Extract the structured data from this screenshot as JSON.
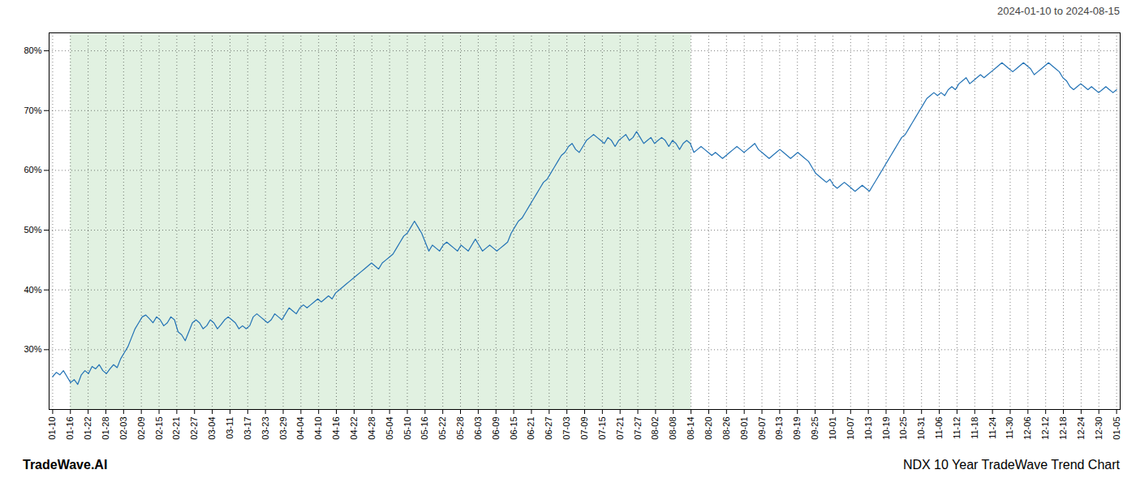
{
  "chart_data": {
    "type": "line",
    "title": "NDX 10 Year TradeWave Trend Chart",
    "subtitle": "2024-01-10 to 2024-08-15",
    "annotations": [
      "TradeWave.AI"
    ],
    "color": "#2272B5",
    "grid": true,
    "shaded_region": {
      "x": [
        4.95,
        178.2
      ],
      "color": "#C8E6C9"
    },
    "xlim": [
      -1,
      298
    ],
    "xticks": [
      {
        "value": 0,
        "label": "01-10"
      },
      {
        "value": 4.95,
        "label": "01-16"
      },
      {
        "value": 9.9,
        "label": "01-22"
      },
      {
        "value": 14.85,
        "label": "01-28"
      },
      {
        "value": 19.8,
        "label": "02-03"
      },
      {
        "value": 24.75,
        "label": "02-09"
      },
      {
        "value": 29.7,
        "label": "02-15"
      },
      {
        "value": 34.65,
        "label": "02-21"
      },
      {
        "value": 39.6,
        "label": "02-27"
      },
      {
        "value": 44.55,
        "label": "03-04"
      },
      {
        "value": 49.5,
        "label": "03-11"
      },
      {
        "value": 54.45,
        "label": "03-17"
      },
      {
        "value": 59.4,
        "label": "03-23"
      },
      {
        "value": 64.35,
        "label": "03-29"
      },
      {
        "value": 69.3,
        "label": "04-04"
      },
      {
        "value": 74.25,
        "label": "04-10"
      },
      {
        "value": 79.2,
        "label": "04-16"
      },
      {
        "value": 84.15,
        "label": "04-22"
      },
      {
        "value": 89.1,
        "label": "04-28"
      },
      {
        "value": 94.05,
        "label": "05-04"
      },
      {
        "value": 99,
        "label": "05-10"
      },
      {
        "value": 103.95,
        "label": "05-16"
      },
      {
        "value": 108.9,
        "label": "05-22"
      },
      {
        "value": 113.85,
        "label": "05-28"
      },
      {
        "value": 118.8,
        "label": "06-03"
      },
      {
        "value": 123.75,
        "label": "06-09"
      },
      {
        "value": 128.7,
        "label": "06-15"
      },
      {
        "value": 133.65,
        "label": "06-21"
      },
      {
        "value": 138.6,
        "label": "06-27"
      },
      {
        "value": 143.55,
        "label": "07-03"
      },
      {
        "value": 148.5,
        "label": "07-09"
      },
      {
        "value": 153.45,
        "label": "07-15"
      },
      {
        "value": 158.4,
        "label": "07-21"
      },
      {
        "value": 163.35,
        "label": "07-27"
      },
      {
        "value": 168.3,
        "label": "08-02"
      },
      {
        "value": 173.25,
        "label": "08-08"
      },
      {
        "value": 178.2,
        "label": "08-14"
      },
      {
        "value": 183.15,
        "label": "08-20"
      },
      {
        "value": 188.1,
        "label": "08-26"
      },
      {
        "value": 193.05,
        "label": "09-01"
      },
      {
        "value": 198,
        "label": "09-07"
      },
      {
        "value": 202.95,
        "label": "09-13"
      },
      {
        "value": 207.9,
        "label": "09-19"
      },
      {
        "value": 212.85,
        "label": "09-25"
      },
      {
        "value": 217.8,
        "label": "10-01"
      },
      {
        "value": 222.75,
        "label": "10-07"
      },
      {
        "value": 227.7,
        "label": "10-13"
      },
      {
        "value": 232.65,
        "label": "10-19"
      },
      {
        "value": 237.6,
        "label": "10-25"
      },
      {
        "value": 242.55,
        "label": "10-31"
      },
      {
        "value": 247.5,
        "label": "11-06"
      },
      {
        "value": 252.45,
        "label": "11-12"
      },
      {
        "value": 257.4,
        "label": "11-18"
      },
      {
        "value": 262.35,
        "label": "11-24"
      },
      {
        "value": 267.3,
        "label": "11-30"
      },
      {
        "value": 272.25,
        "label": "12-06"
      },
      {
        "value": 277.2,
        "label": "12-12"
      },
      {
        "value": 282.15,
        "label": "12-18"
      },
      {
        "value": 287.1,
        "label": "12-24"
      },
      {
        "value": 292.05,
        "label": "12-30"
      },
      {
        "value": 297,
        "label": "01-05"
      }
    ],
    "ylim": [
      20,
      83
    ],
    "yticks": [
      {
        "value": 30,
        "label": "30%"
      },
      {
        "value": 40,
        "label": "40%"
      },
      {
        "value": 50,
        "label": "50%"
      },
      {
        "value": 60,
        "label": "60%"
      },
      {
        "value": 70,
        "label": "70%"
      },
      {
        "value": 80,
        "label": "80%"
      }
    ],
    "values": [
      25.5,
      26.2,
      25.8,
      26.5,
      25.5,
      24.5,
      25.0,
      24.2,
      25.8,
      26.5,
      26.0,
      27.2,
      26.8,
      27.5,
      26.5,
      26.0,
      26.8,
      27.5,
      27.0,
      28.5,
      29.5,
      30.5,
      32.0,
      33.5,
      34.5,
      35.5,
      35.8,
      35.2,
      34.5,
      35.5,
      35.0,
      34.0,
      34.5,
      35.5,
      35.0,
      33.0,
      32.5,
      31.5,
      33.0,
      34.5,
      35.0,
      34.5,
      33.5,
      34.0,
      35.0,
      34.5,
      33.5,
      34.2,
      35.0,
      35.5,
      35.0,
      34.5,
      33.5,
      34.0,
      33.5,
      34.0,
      35.5,
      36.0,
      35.5,
      35.0,
      34.5,
      35.0,
      36.0,
      35.5,
      35.0,
      36.0,
      37.0,
      36.5,
      36.0,
      37.0,
      37.5,
      37.0,
      37.5,
      38.0,
      38.5,
      38.0,
      38.5,
      39.0,
      38.5,
      39.5,
      40.0,
      40.5,
      41.0,
      41.5,
      42.0,
      42.5,
      43.0,
      43.5,
      44.0,
      44.5,
      44.0,
      43.5,
      44.5,
      45.0,
      45.5,
      46.0,
      47.0,
      48.0,
      49.0,
      49.5,
      50.5,
      51.5,
      50.5,
      49.5,
      48.0,
      46.5,
      47.5,
      47.0,
      46.5,
      47.5,
      48.0,
      47.5,
      47.0,
      46.5,
      47.5,
      47.0,
      46.5,
      47.5,
      48.5,
      47.5,
      46.5,
      47.0,
      47.5,
      47.0,
      46.5,
      47.0,
      47.5,
      48.0,
      49.5,
      50.5,
      51.5,
      52.0,
      53.0,
      54.0,
      55.0,
      56.0,
      57.0,
      58.0,
      58.5,
      59.5,
      60.5,
      61.5,
      62.5,
      63.0,
      64.0,
      64.5,
      63.5,
      63.0,
      64.0,
      65.0,
      65.5,
      66.0,
      65.5,
      65.0,
      64.5,
      65.5,
      65.0,
      64.0,
      65.0,
      65.5,
      66.0,
      65.0,
      65.5,
      66.5,
      65.5,
      64.5,
      65.0,
      65.5,
      64.5,
      65.0,
      65.5,
      65.0,
      64.0,
      65.0,
      64.5,
      63.5,
      64.5,
      65.0,
      64.5,
      63.0,
      63.5,
      64.0,
      63.5,
      63.0,
      62.5,
      63.0,
      62.5,
      62.0,
      62.5,
      63.0,
      63.5,
      64.0,
      63.5,
      63.0,
      63.5,
      64.0,
      64.5,
      63.5,
      63.0,
      62.5,
      62.0,
      62.5,
      63.0,
      63.5,
      63.0,
      62.5,
      62.0,
      62.5,
      63.0,
      62.5,
      62.0,
      61.5,
      60.5,
      59.5,
      59.0,
      58.5,
      58.0,
      58.5,
      57.5,
      57.0,
      57.5,
      58.0,
      57.5,
      57.0,
      56.5,
      57.0,
      57.5,
      57.0,
      56.5,
      57.5,
      58.5,
      59.5,
      60.5,
      61.5,
      62.5,
      63.5,
      64.5,
      65.5,
      66.0,
      67.0,
      68.0,
      69.0,
      70.0,
      71.0,
      72.0,
      72.5,
      73.0,
      72.5,
      73.0,
      72.5,
      73.5,
      74.0,
      73.5,
      74.5,
      75.0,
      75.5,
      74.5,
      75.0,
      75.5,
      76.0,
      75.5,
      76.0,
      76.5,
      77.0,
      77.5,
      78.0,
      77.5,
      77.0,
      76.5,
      77.0,
      77.5,
      78.0,
      77.5,
      77.0,
      76.0,
      76.5,
      77.0,
      77.5,
      78.0,
      77.5,
      77.0,
      76.5,
      75.5,
      75.0,
      74.0,
      73.5,
      74.0,
      74.5,
      74.0,
      73.5,
      74.0,
      73.5,
      73.0,
      73.5,
      74.0,
      73.5,
      73.0,
      73.5
    ]
  }
}
